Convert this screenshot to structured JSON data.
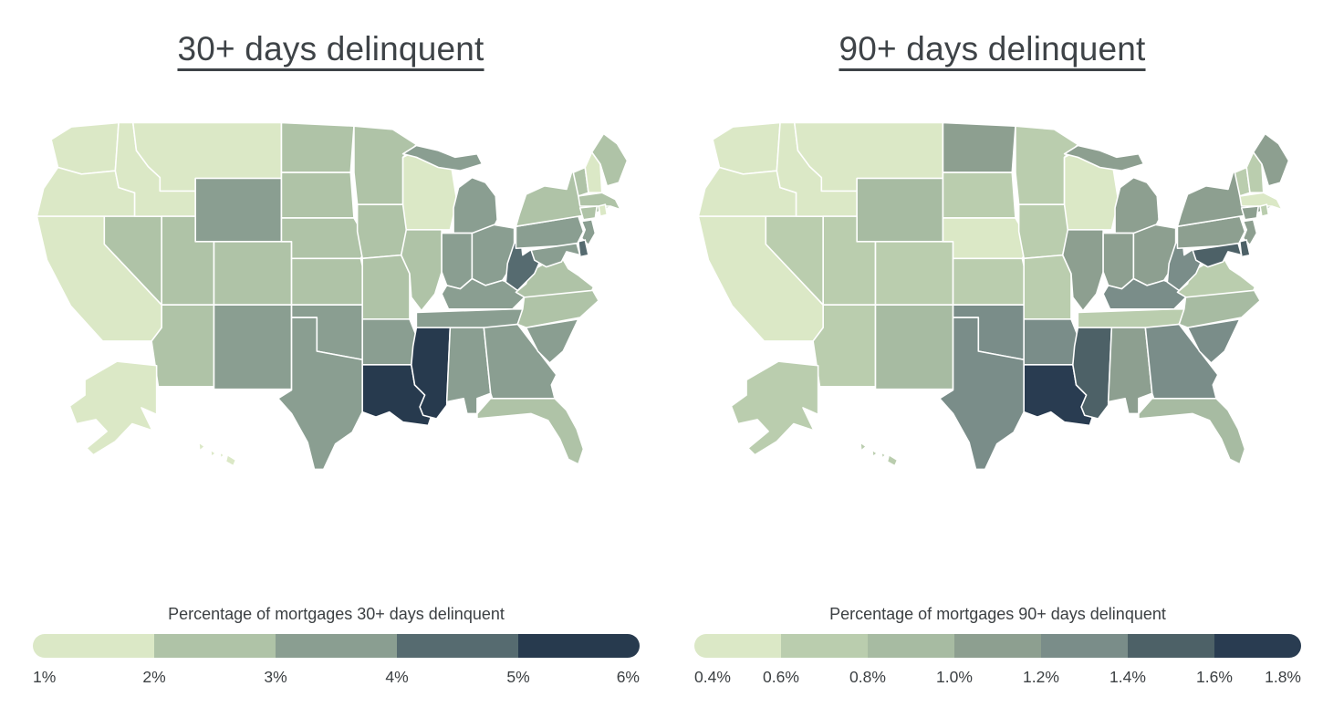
{
  "chart_data": [
    {
      "type": "choropleth",
      "title": "30+ days delinquent",
      "legend_title": "Percentage of mortgages 30+ days delinquent",
      "unit": "%",
      "domain": [
        1,
        6
      ],
      "ticks": [
        "1%",
        "2%",
        "3%",
        "4%",
        "5%",
        "6%"
      ],
      "colors": [
        "#dbe8c6",
        "#afc3a7",
        "#8a9e91",
        "#566b70",
        "#273a4e"
      ],
      "legend_position": "bottom",
      "values": {
        "AK": 1.9,
        "AL": 3.8,
        "AR": 3.5,
        "AZ": 2.7,
        "CA": 1.8,
        "CO": 2.5,
        "CT": 2.7,
        "DE": 4.3,
        "FL": 2.9,
        "GA": 3.7,
        "HI": 1.6,
        "IA": 2.6,
        "ID": 1.9,
        "IL": 2.9,
        "IN": 3.8,
        "KS": 2.7,
        "KY": 3.5,
        "LA": 5.4,
        "MA": 2.4,
        "MD": 3.9,
        "ME": 2.7,
        "MI": 3.4,
        "MN": 2.4,
        "MO": 2.8,
        "MS": 5.9,
        "MT": 1.8,
        "NC": 2.8,
        "ND": 2.6,
        "NE": 2.5,
        "NH": 1.9,
        "NJ": 3.1,
        "NM": 3.3,
        "NV": 2.7,
        "NY": 2.8,
        "OH": 3.6,
        "OK": 3.7,
        "OR": 1.7,
        "PA": 3.3,
        "RI": 1.9,
        "SC": 3.6,
        "SD": 2.5,
        "TN": 3.4,
        "TX": 3.6,
        "UT": 2.6,
        "VA": 2.7,
        "VT": 2.4,
        "WA": 1.6,
        "WI": 1.9,
        "WV": 4.3,
        "WY": 3.2
      }
    },
    {
      "type": "choropleth",
      "title": "90+ days delinquent",
      "legend_title": "Percentage of mortgages 90+ days delinquent",
      "unit": "%",
      "domain": [
        0.4,
        1.8
      ],
      "ticks": [
        "0.4%",
        "0.6%",
        "0.8%",
        "1.0%",
        "1.2%",
        "1.4%",
        "1.6%",
        "1.8%"
      ],
      "colors": [
        "#dbe8c6",
        "#bacdae",
        "#a7bba2",
        "#8d9f90",
        "#7a8d89",
        "#4d6167",
        "#293c51"
      ],
      "legend_position": "bottom",
      "values": {
        "AK": 0.7,
        "AL": 1.05,
        "AR": 1.25,
        "AZ": 0.75,
        "CA": 0.5,
        "CO": 0.7,
        "CT": 1.05,
        "DE": 1.45,
        "FL": 0.95,
        "GA": 1.25,
        "HI": 0.7,
        "IA": 0.7,
        "ID": 0.5,
        "IL": 1.1,
        "IN": 1.05,
        "KS": 0.75,
        "KY": 1.3,
        "LA": 1.7,
        "MA": 0.55,
        "MD": 1.45,
        "ME": 1.05,
        "MI": 1.05,
        "MN": 0.65,
        "MO": 0.7,
        "MS": 1.5,
        "MT": 0.5,
        "NC": 0.95,
        "ND": 1.05,
        "NE": 0.45,
        "NH": 0.7,
        "NJ": 1.15,
        "NM": 0.9,
        "NV": 0.75,
        "NY": 1.1,
        "OH": 1.05,
        "OK": 1.3,
        "OR": 0.5,
        "PA": 1.05,
        "RI": 0.7,
        "SC": 1.25,
        "SD": 0.75,
        "TN": 0.7,
        "TX": 1.25,
        "UT": 0.7,
        "VA": 0.7,
        "VT": 0.7,
        "WA": 0.5,
        "WI": 0.55,
        "WV": 1.3,
        "WY": 0.85
      }
    }
  ]
}
